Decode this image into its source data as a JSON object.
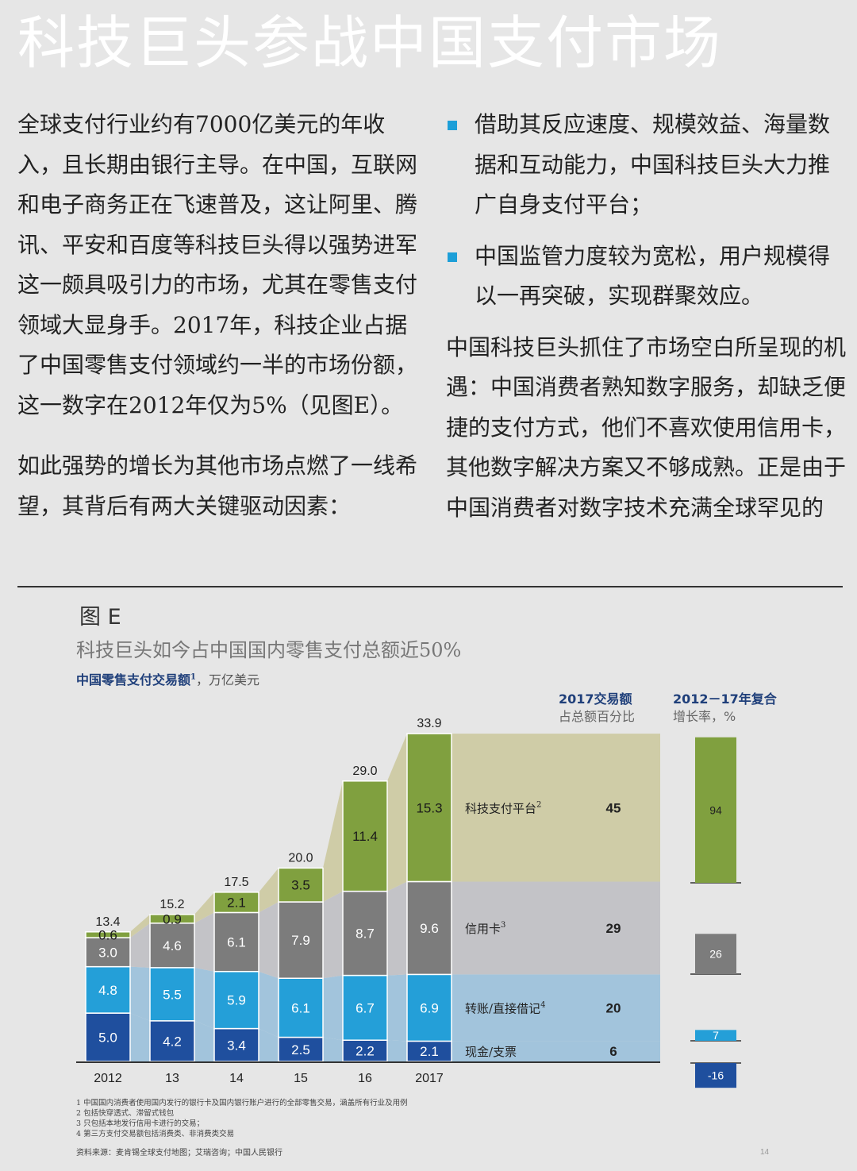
{
  "title": "科技巨头参战中国支付市场",
  "left_paragraphs": [
    "全球支付行业约有7000亿美元的年收入，且长期由银行主导。在中国，互联网和电子商务正在飞速普及，这让阿里、腾讯、平安和百度等科技巨头得以强势进军这一颇具吸引力的市场，尤其在零售支付领域大显身手。2017年，科技企业占据了中国零售支付领域约一半的市场份额，这一数字在2012年仅为5%（见图E）。",
    "如此强势的增长为其他市场点燃了一线希望，其背后有两大关键驱动因素："
  ],
  "right_bullets": [
    "借助其反应速度、规模效益、海量数据和互动能力，中国科技巨头大力推广自身支付平台；",
    "中国监管力度较为宽松，用户规模得以一再突破，实现群聚效应。"
  ],
  "right_paragraph": "中国科技巨头抓住了市场空白所呈现的机遇：中国消费者熟知数字服务，却缺乏便捷的支付方式，他们不喜欢使用信用卡，其他数字解决方案又不够成熟。正是由于中国消费者对数字技术充满全球罕见的",
  "figure": {
    "label": "图 E",
    "title": "科技巨头如今占中国国内零售支付总额近50%",
    "subtitle": "中国零售支付交易额",
    "subtitle_note": "1",
    "unit": "，万亿美元",
    "share_header_1": "2017交易额",
    "share_header_2": "占总额百分比",
    "cagr_header_1": "2012－17年复合",
    "cagr_header_2": "增长率，%"
  },
  "chart_data": {
    "type": "bar",
    "stacked": true,
    "categories": [
      "2012",
      "13",
      "14",
      "15",
      "16",
      "2017"
    ],
    "totals": [
      "13.4",
      "15.2",
      "17.5",
      "20.0",
      "29.0",
      "33.9"
    ],
    "series": [
      {
        "name": "现金/支票",
        "color": "#1f4f9e",
        "values": [
          5.0,
          4.2,
          3.4,
          2.5,
          2.2,
          2.1
        ],
        "labels": [
          "5.0",
          "4.2",
          "3.4",
          "2.5",
          "2.2",
          "2.1"
        ],
        "share": "6",
        "cagr": -16,
        "cagr_label": "-16",
        "band": "#a2c4dc"
      },
      {
        "name": "转账/直接借记",
        "note": "4",
        "color": "#249fd8",
        "values": [
          4.8,
          5.5,
          5.9,
          6.1,
          6.7,
          6.9
        ],
        "labels": [
          "4.8",
          "5.5",
          "5.9",
          "6.1",
          "6.7",
          "6.9"
        ],
        "share": "20",
        "cagr": 7,
        "cagr_label": "7",
        "band": "#a2c4dc"
      },
      {
        "name": "信用卡",
        "note": "3",
        "color": "#7c7c7c",
        "values": [
          3.0,
          4.6,
          6.1,
          7.9,
          8.7,
          9.6
        ],
        "labels": [
          "3.0",
          "4.6",
          "6.1",
          "7.9",
          "8.7",
          "9.6"
        ],
        "share": "29",
        "cagr": 26,
        "cagr_label": "26",
        "band": "#c3c3c7"
      },
      {
        "name": "科技支付平台",
        "note": "2",
        "color": "#80a03f",
        "values": [
          0.6,
          0.9,
          2.1,
          3.5,
          11.4,
          15.3
        ],
        "labels": [
          "0.6",
          "0.9",
          "2.1",
          "3.5",
          "11.4",
          "15.3"
        ],
        "share": "45",
        "cagr": 94,
        "cagr_label": "94",
        "band": "#cfcca7"
      }
    ]
  },
  "footnotes": [
    "1 中国国内消费者使用国内发行的银行卡及国内银行账户进行的全部零售交易，涵盖所有行业及用例",
    "2 包括快穿透式、滞留式钱包",
    "3 只包括本地发行信用卡进行的交易；",
    "4 第三方支付交易额包括消费类、非消费类交易"
  ],
  "source": "资料来源：麦肯锡全球支付地图；艾瑞咨询；中国人民银行",
  "page_number": "14"
}
